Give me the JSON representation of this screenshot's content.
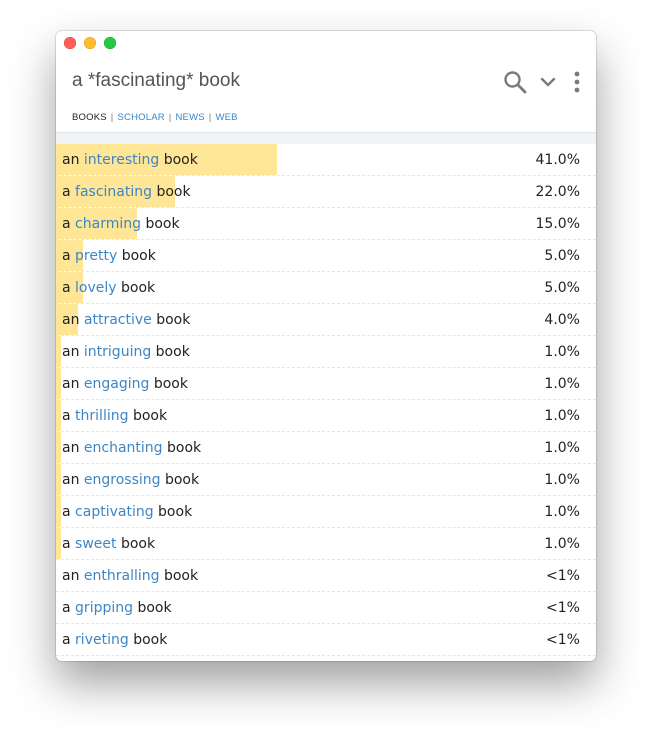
{
  "header": {
    "query": "a *fascinating* book",
    "tabs": [
      {
        "label": "BOOKS",
        "active": true
      },
      {
        "label": "SCHOLAR",
        "active": false
      },
      {
        "label": "NEWS",
        "active": false
      },
      {
        "label": "WEB",
        "active": false
      }
    ],
    "separator": "|",
    "icons": [
      "search-icon",
      "chevron-down-icon",
      "more-vertical-icon"
    ]
  },
  "colors": {
    "accent": "#3d86c6",
    "bar": "#ffe596",
    "text": "#222222"
  },
  "results": [
    {
      "prefix": "an",
      "word": "interesting",
      "suffix": "book",
      "percent": "41.0%",
      "share": 0.41
    },
    {
      "prefix": "a",
      "word": "fascinating",
      "suffix": "book",
      "percent": "22.0%",
      "share": 0.22
    },
    {
      "prefix": "a",
      "word": "charming",
      "suffix": "book",
      "percent": "15.0%",
      "share": 0.15
    },
    {
      "prefix": "a",
      "word": "pretty",
      "suffix": "book",
      "percent": "5.0%",
      "share": 0.05
    },
    {
      "prefix": "a",
      "word": "lovely",
      "suffix": "book",
      "percent": "5.0%",
      "share": 0.05
    },
    {
      "prefix": "an",
      "word": "attractive",
      "suffix": "book",
      "percent": "4.0%",
      "share": 0.04
    },
    {
      "prefix": "an",
      "word": "intriguing",
      "suffix": "book",
      "percent": "1.0%",
      "share": 0.01
    },
    {
      "prefix": "an",
      "word": "engaging",
      "suffix": "book",
      "percent": "1.0%",
      "share": 0.01
    },
    {
      "prefix": "a",
      "word": "thrilling",
      "suffix": "book",
      "percent": "1.0%",
      "share": 0.01
    },
    {
      "prefix": "an",
      "word": "enchanting",
      "suffix": "book",
      "percent": "1.0%",
      "share": 0.01
    },
    {
      "prefix": "an",
      "word": "engrossing",
      "suffix": "book",
      "percent": "1.0%",
      "share": 0.01
    },
    {
      "prefix": "a",
      "word": "captivating",
      "suffix": "book",
      "percent": "1.0%",
      "share": 0.01
    },
    {
      "prefix": "a",
      "word": "sweet",
      "suffix": "book",
      "percent": "1.0%",
      "share": 0.01
    },
    {
      "prefix": "an",
      "word": "enthralling",
      "suffix": "book",
      "percent": "<1%",
      "share": 0
    },
    {
      "prefix": "a",
      "word": "gripping",
      "suffix": "book",
      "percent": "<1%",
      "share": 0
    },
    {
      "prefix": "a",
      "word": "riveting",
      "suffix": "book",
      "percent": "<1%",
      "share": 0
    }
  ]
}
